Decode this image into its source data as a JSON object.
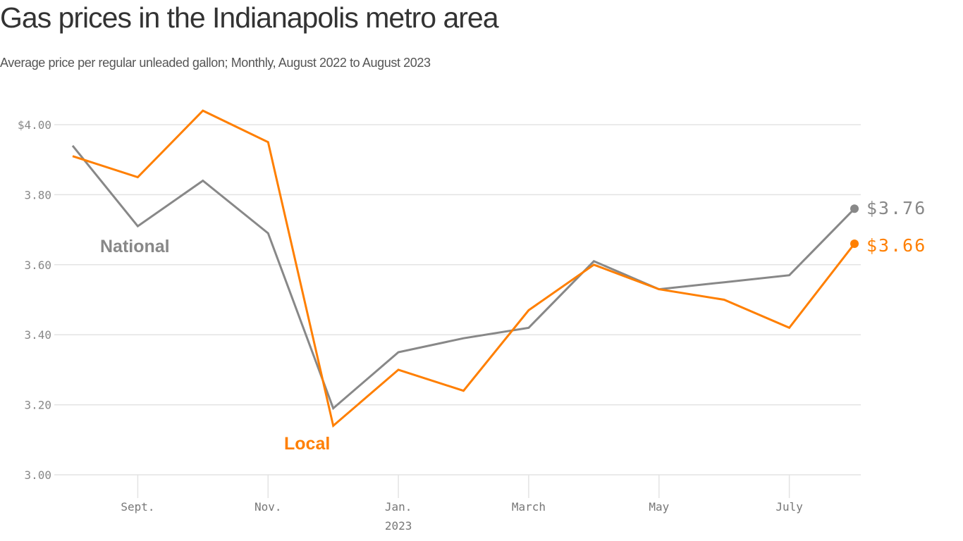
{
  "header": {
    "title": "Gas prices in the Indianapolis metro area",
    "subtitle": "Average price per regular unleaded gallon; Monthly, August 2022 to August 2023"
  },
  "chart_data": {
    "type": "line",
    "title": "Gas prices in the Indianapolis metro area",
    "subtitle": "Average price per regular unleaded gallon; Monthly, August 2022 to August 2023",
    "xlabel": "",
    "ylabel": "",
    "x": [
      "Aug 2022",
      "Sep 2022",
      "Oct 2022",
      "Nov 2022",
      "Dec 2022",
      "Jan 2023",
      "Feb 2023",
      "Mar 2023",
      "Apr 2023",
      "May 2023",
      "Jun 2023",
      "Jul 2023",
      "Aug 2023"
    ],
    "ylim": [
      3.0,
      4.05
    ],
    "grid": true,
    "y_ticks": [
      {
        "value": 4.0,
        "label": "$4.00"
      },
      {
        "value": 3.8,
        "label": "3.80"
      },
      {
        "value": 3.6,
        "label": "3.60"
      },
      {
        "value": 3.4,
        "label": "3.40"
      },
      {
        "value": 3.2,
        "label": "3.20"
      },
      {
        "value": 3.0,
        "label": "3.00"
      }
    ],
    "x_ticks": [
      {
        "index": 1,
        "label": "Sept."
      },
      {
        "index": 3,
        "label": "Nov."
      },
      {
        "index": 5,
        "label": "Jan.",
        "sublabel": "2023"
      },
      {
        "index": 7,
        "label": "March"
      },
      {
        "index": 9,
        "label": "May"
      },
      {
        "index": 11,
        "label": "July"
      }
    ],
    "series": [
      {
        "name": "National",
        "color": "#888888",
        "values": [
          3.94,
          3.71,
          3.84,
          3.69,
          3.19,
          3.35,
          3.39,
          3.42,
          3.61,
          3.53,
          3.55,
          3.57,
          3.76
        ],
        "end_label": "$3.76"
      },
      {
        "name": "Local",
        "color": "#ff7f00",
        "values": [
          3.91,
          3.85,
          4.04,
          3.95,
          3.14,
          3.3,
          3.24,
          3.47,
          3.6,
          3.53,
          3.5,
          3.42,
          3.66
        ],
        "end_label": "$3.66"
      }
    ],
    "legend": "inline labels"
  }
}
